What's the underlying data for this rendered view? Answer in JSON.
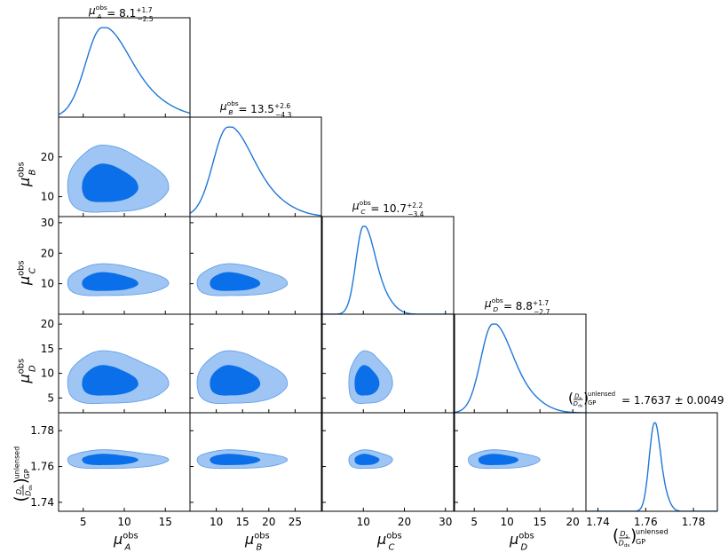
{
  "chart_data": {
    "type": "corner",
    "parameters": [
      {
        "key": "A",
        "sub": "A",
        "range": [
          2,
          18
        ],
        "ticks": [
          5,
          10,
          15
        ],
        "title_main": "= 8.1",
        "title_sup": "+1.7",
        "title_sub": "−2.5"
      },
      {
        "key": "B",
        "sub": "B",
        "range": [
          5,
          30
        ],
        "ticks": [
          10,
          15,
          20,
          25
        ],
        "title_main": "= 13.5",
        "title_sup": "+2.6",
        "title_sub": "−4.3"
      },
      {
        "key": "C",
        "sub": "C",
        "range": [
          0,
          32
        ],
        "ticks": [
          10,
          20,
          30
        ],
        "title_main": "= 10.7",
        "title_sup": "+2.2",
        "title_sub": "−3.4"
      },
      {
        "key": "D",
        "sub": "D",
        "range": [
          2,
          22
        ],
        "ticks": [
          5,
          10,
          15,
          20
        ],
        "title_main": "= 8.8",
        "title_sup": "+1.7",
        "title_sub": "−2.7"
      },
      {
        "key": "E",
        "range": [
          1.735,
          1.79
        ],
        "ticks": [
          1.74,
          1.76,
          1.78
        ],
        "title_main": "= 1.7637 ± 0.0049"
      }
    ],
    "y_ticks": {
      "B": [
        10,
        20
      ],
      "C": [
        10,
        20,
        30
      ],
      "D": [
        5,
        10,
        15,
        20
      ],
      "E": [
        1.74,
        1.76,
        1.78
      ]
    },
    "marginals": {
      "A": {
        "mode": 7.3,
        "wl": 2.0,
        "wr": 3.3
      },
      "B": {
        "mode": 12.2,
        "wl": 2.8,
        "wr": 4.6
      },
      "C": {
        "mode": 10.0,
        "wl": 1.8,
        "wr": 2.8
      },
      "D": {
        "mode": 7.8,
        "wl": 1.8,
        "wr": 2.9
      },
      "E": {
        "mode": 1.7637,
        "wl": 0.0022,
        "wr": 0.0024
      }
    },
    "contour_levels": [
      "68%",
      "95%"
    ],
    "colors": {
      "line": "#1f77d9",
      "inner": "#0a6fe8",
      "outer": "#9ec5f3",
      "edge": "#5a9be6",
      "axis": "#000000"
    },
    "labels": {
      "mu": "μ",
      "obs": "obs",
      "ds_num": "D",
      "ds_num_sub": "s",
      "ds_den": "D",
      "ds_den_sub": "ds",
      "unlensed": "unlensed",
      "gp": "GP"
    }
  }
}
